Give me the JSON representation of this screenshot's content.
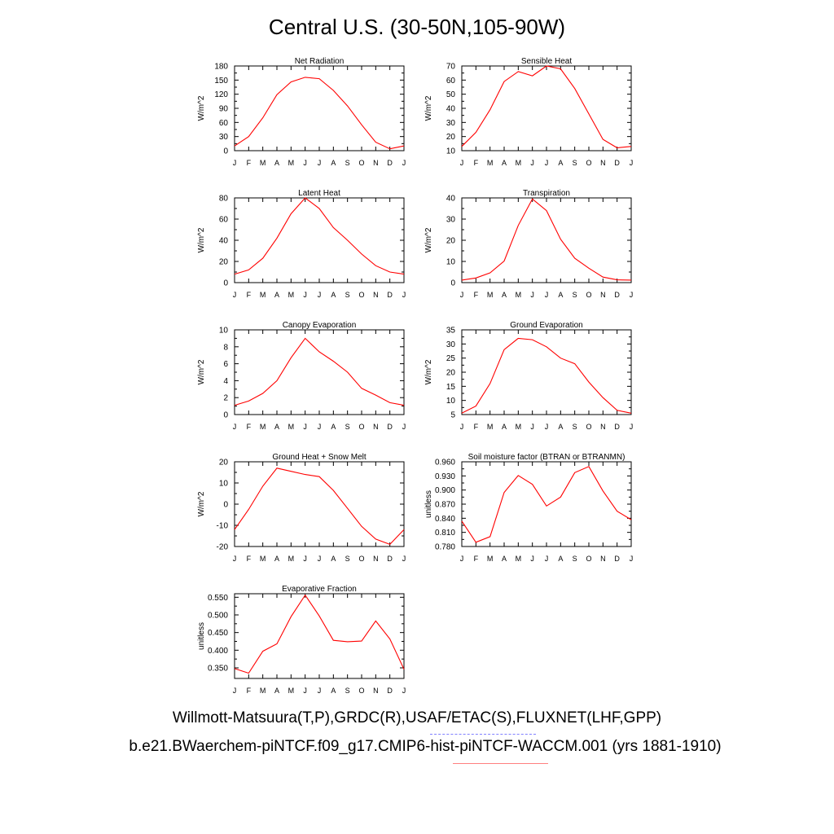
{
  "title": "Central U.S. (30-50N,105-90W)",
  "captions": {
    "observations": "Willmott-Matsuura(T,P),GRDC(R),USAF/ETAC(S),FLUXNET(LHF,GPP)",
    "case": "b.e21.BWaerchem-piNTCF.f09_g17.CMIP6-hist-piNTCF-WACCM.001 (yrs 1881-1910)"
  },
  "colors": {
    "model_line": "#ff0000",
    "obs_legend": "#8080ff",
    "case_legend": "#ff8080"
  },
  "chart_data": [
    {
      "type": "line",
      "title": "Net Radiation",
      "ylabel": "W/m^2",
      "categories": [
        "J",
        "F",
        "M",
        "A",
        "M",
        "J",
        "J",
        "A",
        "S",
        "O",
        "N",
        "D",
        "J"
      ],
      "ylim": [
        0,
        180
      ],
      "yticks": [
        "0",
        "30",
        "60",
        "90",
        "120",
        "150",
        "180"
      ],
      "series": [
        {
          "values": [
            10,
            30,
            70,
            119,
            146,
            156,
            153,
            128,
            95,
            55,
            18,
            4,
            10
          ]
        }
      ]
    },
    {
      "type": "line",
      "title": "Sensible Heat",
      "ylabel": "W/m^2",
      "categories": [
        "J",
        "F",
        "M",
        "A",
        "M",
        "J",
        "J",
        "A",
        "S",
        "O",
        "N",
        "D",
        "J"
      ],
      "ylim": [
        10,
        70
      ],
      "yticks": [
        "10",
        "20",
        "30",
        "40",
        "50",
        "60",
        "70"
      ],
      "series": [
        {
          "values": [
            13,
            23,
            39,
            59,
            66,
            63,
            70,
            68,
            54,
            36,
            18,
            12,
            13
          ]
        }
      ]
    },
    {
      "type": "line",
      "title": "Latent Heat",
      "ylabel": "W/m^2",
      "categories": [
        "J",
        "F",
        "M",
        "A",
        "M",
        "J",
        "J",
        "A",
        "S",
        "O",
        "N",
        "D",
        "J"
      ],
      "ylim": [
        0,
        80
      ],
      "yticks": [
        "0",
        "20",
        "40",
        "60",
        "80"
      ],
      "series": [
        {
          "values": [
            8,
            12,
            23,
            42,
            65,
            80,
            70,
            52,
            40,
            27,
            16,
            10,
            8
          ]
        }
      ]
    },
    {
      "type": "line",
      "title": "Transpiration",
      "ylabel": "W/m^2",
      "categories": [
        "J",
        "F",
        "M",
        "A",
        "M",
        "J",
        "J",
        "A",
        "S",
        "O",
        "N",
        "D",
        "J"
      ],
      "ylim": [
        0,
        40
      ],
      "yticks": [
        "0",
        "10",
        "20",
        "30",
        "40"
      ],
      "series": [
        {
          "values": [
            1.2,
            2.2,
            4.6,
            10.2,
            27,
            39.5,
            34,
            20.5,
            11.5,
            6.8,
            2.6,
            1.3,
            1.2
          ]
        }
      ]
    },
    {
      "type": "line",
      "title": "Canopy Evaporation",
      "ylabel": "W/m^2",
      "categories": [
        "J",
        "F",
        "M",
        "A",
        "M",
        "J",
        "J",
        "A",
        "S",
        "O",
        "N",
        "D",
        "J"
      ],
      "ylim": [
        0,
        10
      ],
      "yticks": [
        "0",
        "2",
        "4",
        "6",
        "8",
        "10"
      ],
      "series": [
        {
          "values": [
            1.1,
            1.6,
            2.5,
            4.0,
            6.7,
            9.0,
            7.4,
            6.3,
            5.0,
            3.1,
            2.3,
            1.4,
            1.1
          ]
        }
      ]
    },
    {
      "type": "line",
      "title": "Ground Evaporation",
      "ylabel": "W/m^2",
      "categories": [
        "J",
        "F",
        "M",
        "A",
        "M",
        "J",
        "J",
        "A",
        "S",
        "O",
        "N",
        "D",
        "J"
      ],
      "ylim": [
        5,
        35
      ],
      "yticks": [
        "5",
        "10",
        "15",
        "20",
        "25",
        "30",
        "35"
      ],
      "series": [
        {
          "values": [
            5.5,
            8.0,
            16,
            28,
            32,
            31.5,
            29,
            25,
            23,
            16.5,
            11,
            6.5,
            5.5
          ]
        }
      ]
    },
    {
      "type": "line",
      "title": "Ground Heat + Snow Melt",
      "ylabel": "W/m^2",
      "categories": [
        "J",
        "F",
        "M",
        "A",
        "M",
        "J",
        "J",
        "A",
        "S",
        "O",
        "N",
        "D",
        "J"
      ],
      "ylim": [
        -20,
        20
      ],
      "yticks": [
        "-20",
        "-10",
        "0",
        "10",
        "20"
      ],
      "series": [
        {
          "values": [
            -12,
            -2.5,
            8.5,
            17,
            15.5,
            14,
            13,
            6.5,
            -2,
            -10.5,
            -16.5,
            -19,
            -12
          ]
        }
      ]
    },
    {
      "type": "line",
      "title": "Soil moisture factor (BTRAN or BTRANMN)",
      "ylabel": "unitless",
      "categories": [
        "J",
        "F",
        "M",
        "A",
        "M",
        "J",
        "J",
        "A",
        "S",
        "O",
        "N",
        "D",
        "J"
      ],
      "ylim": [
        0.78,
        0.96
      ],
      "yticks": [
        "0.780",
        "0.810",
        "0.840",
        "0.870",
        "0.900",
        "0.930",
        "0.960"
      ],
      "series": [
        {
          "values": [
            0.834,
            0.789,
            0.801,
            0.895,
            0.931,
            0.912,
            0.866,
            0.885,
            0.937,
            0.95,
            0.898,
            0.855,
            0.837
          ]
        }
      ]
    },
    {
      "type": "line",
      "title": "Evaporative Fraction",
      "ylabel": "unitless",
      "categories": [
        "J",
        "F",
        "M",
        "A",
        "M",
        "J",
        "J",
        "A",
        "S",
        "O",
        "N",
        "D",
        "J"
      ],
      "ylim": [
        0.32,
        0.56
      ],
      "yticks": [
        "0.350",
        "0.400",
        "0.450",
        "0.500",
        "0.550"
      ],
      "series": [
        {
          "values": [
            0.348,
            0.335,
            0.397,
            0.418,
            0.495,
            0.556,
            0.497,
            0.428,
            0.424,
            0.426,
            0.483,
            0.432,
            0.346
          ]
        }
      ]
    }
  ]
}
